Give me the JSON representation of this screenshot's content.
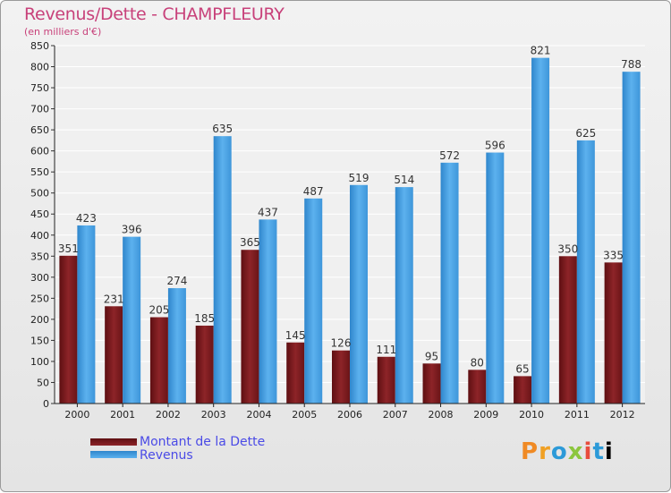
{
  "header": {
    "title": "Revenus/Dette - CHAMPFLEURY",
    "subtitle": "(en milliers d'€)"
  },
  "legend": {
    "debt_label": "Montant de la Dette",
    "revenue_label": "Revenus"
  },
  "logo": {
    "letters": [
      "P",
      "r",
      "o",
      "x",
      "i",
      "t",
      "i"
    ]
  },
  "colors": {
    "debt": "#7a1a1e",
    "debt_light": "#9b2d31",
    "revenue": "#3f9be0",
    "revenue_light": "#5aaeea",
    "title": "#c8417a",
    "legend_text": "#4a4ae6"
  },
  "chart_data": {
    "type": "bar",
    "title": "Revenus/Dette - CHAMPFLEURY",
    "ylabel": "(en milliers d'€)",
    "xlabel": "",
    "categories": [
      "2000",
      "2001",
      "2002",
      "2003",
      "2004",
      "2005",
      "2006",
      "2007",
      "2008",
      "2009",
      "2010",
      "2011",
      "2012"
    ],
    "series": [
      {
        "name": "Montant de la Dette",
        "values": [
          351,
          231,
          205,
          185,
          365,
          145,
          126,
          111,
          95,
          80,
          65,
          350,
          335
        ]
      },
      {
        "name": "Revenus",
        "values": [
          423,
          396,
          274,
          635,
          437,
          487,
          519,
          514,
          572,
          596,
          821,
          625,
          788
        ]
      }
    ],
    "ylim": [
      0,
      850
    ],
    "yticks": [
      0,
      50,
      100,
      150,
      200,
      250,
      300,
      350,
      400,
      450,
      500,
      550,
      600,
      650,
      700,
      750,
      800,
      850
    ],
    "grid": true,
    "legend_position": "bottom-left"
  }
}
